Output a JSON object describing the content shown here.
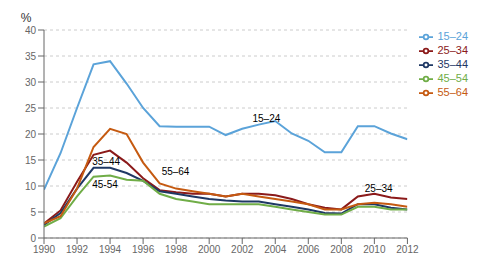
{
  "chart_data": {
    "type": "line",
    "x": [
      1990,
      1991,
      1992,
      1993,
      1994,
      1995,
      1996,
      1997,
      1998,
      1999,
      2000,
      2001,
      2002,
      2003,
      2004,
      2005,
      2006,
      2007,
      2008,
      2009,
      2010,
      2011,
      2012
    ],
    "series": [
      {
        "name": "15–24",
        "color": "#5BA3D9",
        "values": [
          9.3,
          16.3,
          25.0,
          33.4,
          34.0,
          29.7,
          25.0,
          21.5,
          21.4,
          21.4,
          21.4,
          19.8,
          21.0,
          21.8,
          22.5,
          20.1,
          18.7,
          16.5,
          16.5,
          21.5,
          21.5,
          20.1,
          19.0
        ]
      },
      {
        "name": "25–34",
        "color": "#8B1A1A",
        "values": [
          2.8,
          5.3,
          10.8,
          16.0,
          16.8,
          14.5,
          11.5,
          9.2,
          8.8,
          8.5,
          8.5,
          8.0,
          8.5,
          8.5,
          8.2,
          7.5,
          6.5,
          5.8,
          5.5,
          8.0,
          8.5,
          7.8,
          7.5
        ]
      },
      {
        "name": "35–44",
        "color": "#1F3864",
        "values": [
          2.5,
          4.8,
          9.5,
          13.5,
          13.5,
          12.5,
          11.0,
          9.0,
          8.5,
          8.0,
          7.5,
          7.2,
          7.0,
          7.0,
          6.5,
          6.0,
          5.5,
          4.8,
          4.7,
          6.5,
          6.5,
          5.8,
          5.5
        ]
      },
      {
        "name": "45–54",
        "color": "#70AD47",
        "values": [
          2.2,
          3.8,
          8.0,
          11.8,
          12.0,
          11.2,
          11.0,
          8.5,
          7.5,
          7.0,
          6.5,
          6.5,
          6.5,
          6.5,
          6.0,
          5.5,
          5.0,
          4.5,
          4.5,
          6.0,
          6.0,
          5.5,
          5.5
        ]
      },
      {
        "name": "55–64",
        "color": "#C55A11",
        "values": [
          2.8,
          4.2,
          9.5,
          17.5,
          21.0,
          20.0,
          14.5,
          10.5,
          9.5,
          9.0,
          8.5,
          8.0,
          8.5,
          8.0,
          7.5,
          7.0,
          6.5,
          5.5,
          5.5,
          6.5,
          6.8,
          6.5,
          6.0
        ]
      }
    ],
    "annotations": [
      {
        "text": "15–24",
        "x": 2002.5,
        "y": 23.0
      },
      {
        "text": "35–44",
        "x": 1992.8,
        "y": 14.8
      },
      {
        "text": "45-54",
        "x": 1992.8,
        "y": 10.3
      },
      {
        "text": "55–64",
        "x": 1997.0,
        "y": 12.8
      },
      {
        "text": "25–34",
        "x": 2009.3,
        "y": 9.5
      }
    ],
    "ylabel": "%",
    "xlim": [
      1990,
      2012
    ],
    "ylim": [
      0,
      40
    ],
    "xticks": [
      1990,
      1992,
      1994,
      1996,
      1998,
      2000,
      2002,
      2004,
      2006,
      2008,
      2010,
      2012
    ],
    "yticks": [
      0,
      5,
      10,
      15,
      20,
      25,
      30,
      35,
      40
    ],
    "grid": true,
    "legend": "right"
  }
}
